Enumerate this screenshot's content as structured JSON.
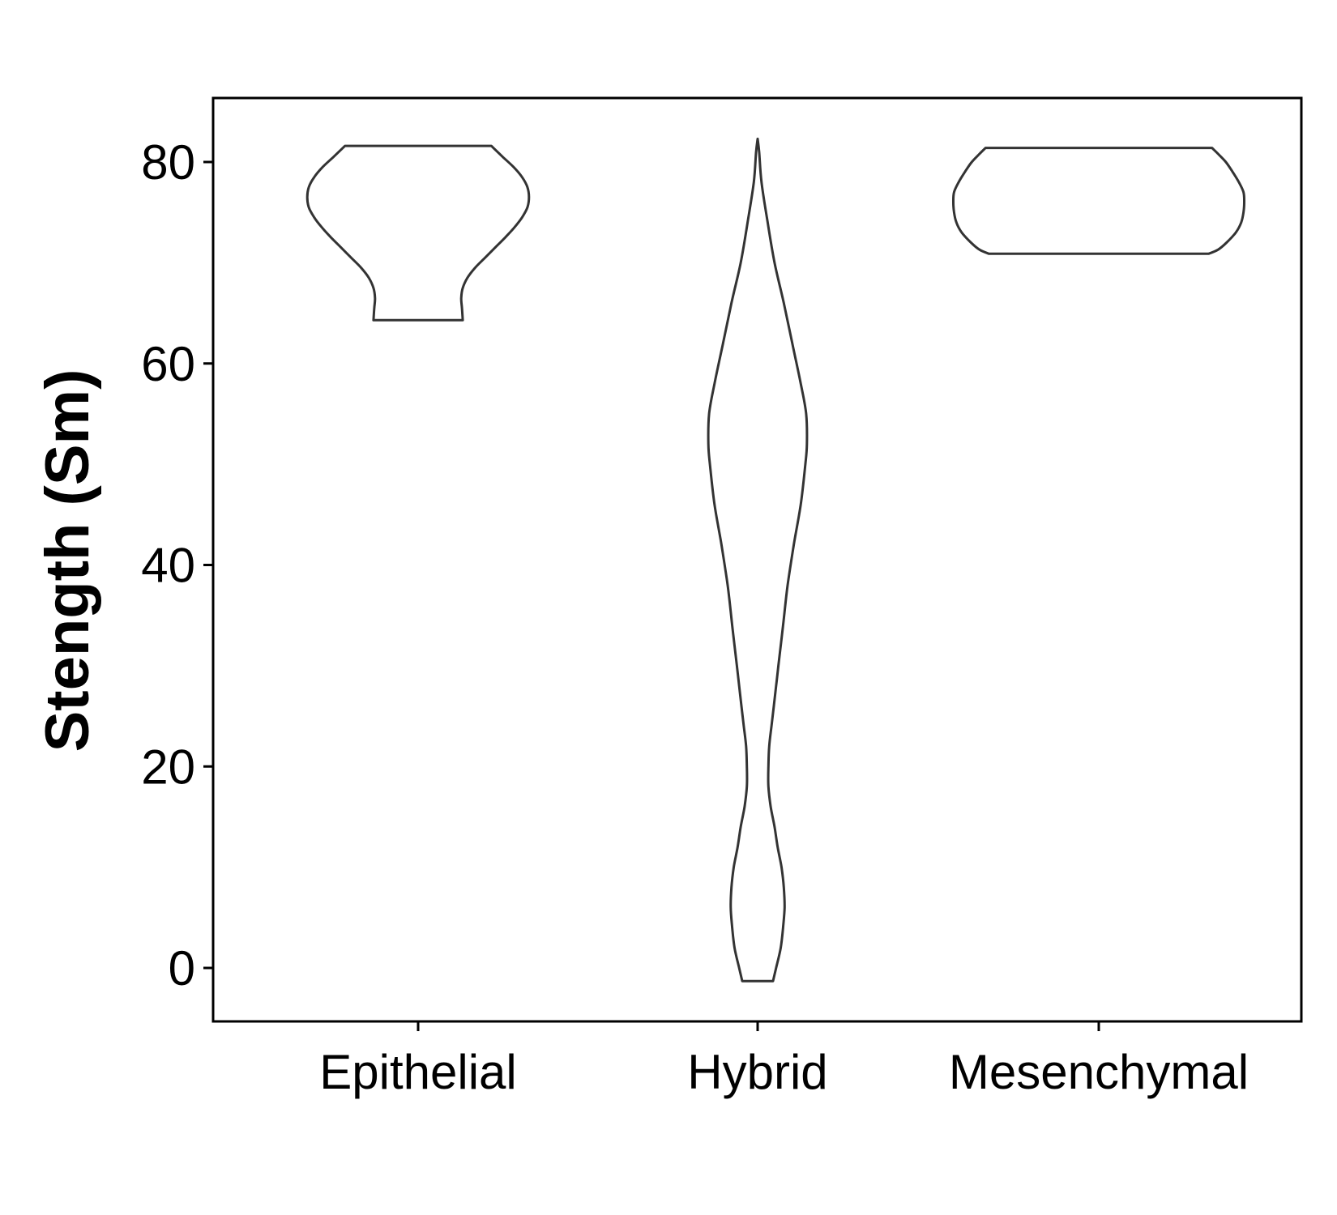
{
  "chart_data": {
    "type": "violin",
    "title": "",
    "xlabel": "",
    "ylabel": "Stength (Sm)",
    "ylim": [
      -5.5,
      86
    ],
    "yticks": [
      0,
      20,
      40,
      60,
      80
    ],
    "ytick_labels": [
      "0",
      "20",
      "40",
      "60",
      "80"
    ],
    "categories": [
      "Epithelial",
      "Hybrid",
      "Mesenchymal"
    ],
    "grid": false,
    "legend": "none",
    "outline_color": "#333333",
    "violins": [
      {
        "category": "Epithelial",
        "min": 64.3,
        "max": 81.6,
        "profile": [
          [
            64.3,
            0.58
          ],
          [
            65.5,
            0.57
          ],
          [
            66.5,
            0.56
          ],
          [
            67.5,
            0.58
          ],
          [
            68.5,
            0.64
          ],
          [
            69.5,
            0.74
          ],
          [
            70.5,
            0.87
          ],
          [
            71.5,
            1.0
          ],
          [
            72.5,
            1.13
          ],
          [
            73.5,
            1.25
          ],
          [
            74.5,
            1.35
          ],
          [
            75.5,
            1.42
          ],
          [
            76.5,
            1.44
          ],
          [
            77.5,
            1.42
          ],
          [
            78.5,
            1.35
          ],
          [
            79.5,
            1.24
          ],
          [
            80.5,
            1.1
          ],
          [
            81.6,
            0.95
          ]
        ]
      },
      {
        "category": "Hybrid",
        "min": -1.3,
        "max": 82.3,
        "profile": [
          [
            -1.3,
            0.2
          ],
          [
            0,
            0.24
          ],
          [
            2,
            0.3
          ],
          [
            4,
            0.33
          ],
          [
            6,
            0.35
          ],
          [
            8,
            0.34
          ],
          [
            10,
            0.31
          ],
          [
            12,
            0.26
          ],
          [
            14,
            0.22
          ],
          [
            16,
            0.17
          ],
          [
            18,
            0.14
          ],
          [
            20,
            0.14
          ],
          [
            22,
            0.15
          ],
          [
            24,
            0.18
          ],
          [
            26,
            0.21
          ],
          [
            28,
            0.24
          ],
          [
            30,
            0.27
          ],
          [
            34,
            0.33
          ],
          [
            38,
            0.39
          ],
          [
            42,
            0.47
          ],
          [
            46,
            0.56
          ],
          [
            50,
            0.62
          ],
          [
            52,
            0.64
          ],
          [
            55,
            0.63
          ],
          [
            58,
            0.56
          ],
          [
            62,
            0.45
          ],
          [
            66,
            0.34
          ],
          [
            70,
            0.22
          ],
          [
            74,
            0.13
          ],
          [
            78,
            0.05
          ],
          [
            81,
            0.02
          ],
          [
            82.3,
            0.0
          ]
        ]
      },
      {
        "category": "Mesenchymal",
        "min": 70.9,
        "max": 81.4,
        "profile": [
          [
            70.9,
            1.43
          ],
          [
            71.3,
            1.55
          ],
          [
            72,
            1.66
          ],
          [
            73,
            1.78
          ],
          [
            74,
            1.85
          ],
          [
            75,
            1.88
          ],
          [
            76,
            1.89
          ],
          [
            77,
            1.88
          ],
          [
            78,
            1.82
          ],
          [
            79,
            1.74
          ],
          [
            80,
            1.65
          ],
          [
            80.8,
            1.55
          ],
          [
            81.4,
            1.47
          ]
        ]
      }
    ]
  }
}
